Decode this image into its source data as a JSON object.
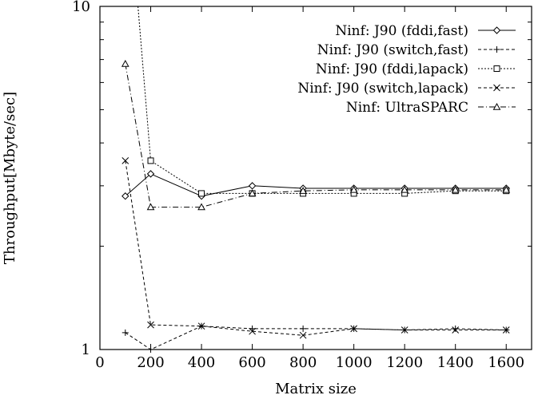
{
  "chart_data": {
    "type": "line",
    "title": "",
    "xlabel": "Matrix size",
    "ylabel": "Throughput[Mbyte/sec]",
    "xlim": [
      0,
      1700
    ],
    "ylim": [
      1,
      10
    ],
    "yscale": "log",
    "grid": false,
    "legend_position": "top-right",
    "x_ticks": [
      0,
      200,
      400,
      600,
      800,
      1000,
      1200,
      1400,
      1600
    ],
    "y_ticks": [
      1,
      10
    ],
    "series": [
      {
        "name": "Ninf: J90 (fddi,fast)",
        "marker": "diamond",
        "line": "solid",
        "x": [
          100,
          200,
          400,
          600,
          800,
          1000,
          1200,
          1400,
          1600
        ],
        "values": [
          2.8,
          3.25,
          2.8,
          3.0,
          2.95,
          2.95,
          2.95,
          2.95,
          2.95
        ]
      },
      {
        "name": "Ninf: J90 (switch,fast)",
        "marker": "plus",
        "line": "dashed",
        "x": [
          100,
          200,
          400,
          600,
          800,
          1000,
          1200,
          1400,
          1600
        ],
        "values": [
          1.12,
          1.0,
          1.17,
          1.15,
          1.15,
          1.15,
          1.14,
          1.15,
          1.14
        ]
      },
      {
        "name": "Ninf: J90 (fddi,lapack)",
        "marker": "square",
        "line": "dotted",
        "x": [
          200,
          400,
          600,
          800,
          1000,
          1200,
          1400,
          1600
        ],
        "values": [
          3.55,
          2.85,
          2.85,
          2.85,
          2.85,
          2.85,
          2.9,
          2.9
        ],
        "note_offchart_start": [
          150,
          10
        ]
      },
      {
        "name": "Ninf: J90 (switch,lapack)",
        "marker": "cross",
        "line": "dashed",
        "x": [
          100,
          200,
          400,
          600,
          800,
          1000,
          1200,
          1400,
          1600
        ],
        "values": [
          3.55,
          1.18,
          1.17,
          1.13,
          1.1,
          1.15,
          1.14,
          1.14,
          1.14
        ]
      },
      {
        "name": "Ninf: UltraSPARC",
        "marker": "triangle",
        "line": "dashdot",
        "x": [
          100,
          200,
          400,
          600,
          800,
          1000,
          1200,
          1400,
          1600
        ],
        "values": [
          6.8,
          2.6,
          2.6,
          2.85,
          2.9,
          2.92,
          2.92,
          2.92,
          2.92
        ]
      }
    ]
  }
}
